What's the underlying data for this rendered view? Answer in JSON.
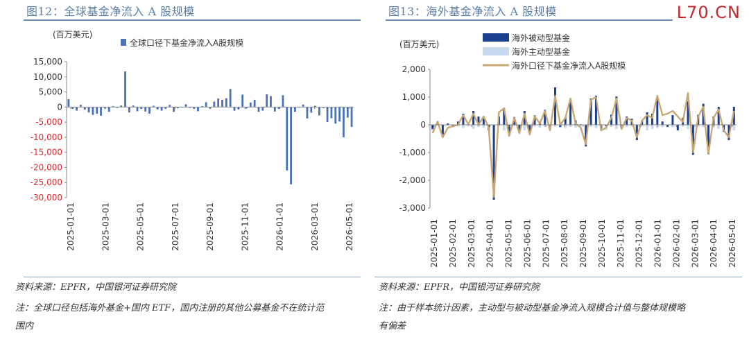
{
  "left": {
    "title": "图12：全球基金净流入 A 股规模",
    "unit": "(百万美元)",
    "source": "资料来源：EPFR，中国银河证券研究院",
    "note_line1": "注：全球口径包括海外基金+国内 ETF，国内注册的其他公募基金不在统计范",
    "note_line2": "围内",
    "chart_data": {
      "type": "bar",
      "ylim": [
        -30000,
        15000
      ],
      "yticks": [
        15000,
        10000,
        5000,
        0,
        -5000,
        -10000,
        -15000,
        -20000,
        -25000,
        -30000
      ],
      "ytick_labels": [
        "15,000",
        "10,000",
        "5,000",
        "0",
        "-5,000",
        "-10,000",
        "-15,000",
        "-20,000",
        "-25,000",
        "-30,000"
      ],
      "xtick_labels": [
        "2025-01-01",
        "2025-03-01",
        "2025-05-01",
        "2025-07-01",
        "2025-09-01",
        "2025-11-01",
        "2026-01-01",
        "2026-03-01",
        "2026-05-01"
      ],
      "series": [
        {
          "name": "全球口径下基金净流入A股规模",
          "color": "#4a72b8",
          "values": [
            2600,
            -600,
            -1200,
            700,
            -900,
            -1800,
            -2600,
            -2200,
            -2900,
            -500,
            -1600,
            300,
            -300,
            500,
            11800,
            -1800,
            500,
            -1400,
            -600,
            -1500,
            -2200,
            400,
            -800,
            -1200,
            -600,
            700,
            -1600,
            -400,
            -200,
            900,
            -300,
            -600,
            -1400,
            300,
            1600,
            -600,
            1800,
            2800,
            2400,
            2900,
            6000,
            -1200,
            -800,
            4100,
            -500,
            1500,
            2400,
            -1600,
            -1200,
            4200,
            3600,
            -1500,
            -600,
            3900,
            -21000,
            -25600,
            -1600,
            -200,
            800,
            -3800,
            -1900,
            400,
            -2800,
            -300,
            -5000,
            -3700,
            -5500,
            -4800,
            -10000,
            -3500,
            -6600
          ]
        }
      ]
    }
  },
  "right": {
    "title": "图13：海外基金净流入 A 股规模",
    "unit": "(百万美元)",
    "source": "资料来源：EPFR，中国银河证券研究院",
    "note_line1": "注：由于样本统计因素，主动型与被动型基金净流入规模合计值与整体规模略",
    "note_line2": "有偏差",
    "chart_data": {
      "type": "bar",
      "ylim": [
        -3000,
        2000
      ],
      "yticks": [
        2000,
        1000,
        0,
        -1000,
        -2000,
        -3000
      ],
      "ytick_labels": [
        "2,000",
        "1,000",
        "0",
        "-1,000",
        "-2,000",
        "-3,000"
      ],
      "xtick_labels": [
        "2025-01-01",
        "2025-02-01",
        "2025-03-01",
        "2025-04-01",
        "2025-05-01",
        "2025-06-01",
        "2025-07-01",
        "2025-08-01",
        "2025-09-01",
        "2025-10-01",
        "2025-11-01",
        "2025-12-01",
        "2026-01-01",
        "2026-02-01",
        "2026-03-01",
        "2026-04-01",
        "2026-05-01"
      ],
      "series": [
        {
          "name": "海外被动型基金",
          "color": "#1b3f8f",
          "values": [
            -150,
            120,
            -350,
            50,
            -80,
            120,
            400,
            30,
            500,
            300,
            220,
            -200,
            -2700,
            300,
            600,
            -350,
            280,
            -200,
            500,
            -250,
            340,
            120,
            540,
            -90,
            1350,
            -80,
            270,
            900,
            160,
            20,
            -780,
            950,
            1050,
            -130,
            -50,
            370,
            1020,
            -100,
            300,
            220,
            -550,
            160,
            450,
            400,
            1000,
            120,
            -80,
            350,
            -200,
            250,
            850,
            -1080,
            360,
            760,
            -1060,
            300,
            650,
            -250,
            -550,
            650
          ]
        },
        {
          "name": "海外主动型基金",
          "color": "#c7d8ef",
          "values": [
            -200,
            40,
            -80,
            -30,
            -40,
            -60,
            -120,
            -60,
            -150,
            -80,
            -100,
            -200,
            -150,
            -40,
            -200,
            -120,
            -60,
            -150,
            -200,
            -80,
            -60,
            -100,
            -80,
            -150,
            -60,
            -90,
            -120,
            -70,
            -100,
            -60,
            -50,
            -80,
            -120,
            -200,
            -180,
            -70,
            -150,
            -90,
            -80,
            -60,
            -100,
            -70,
            -200,
            -150,
            -120,
            -80,
            -60,
            -90,
            -100,
            -70,
            -150,
            -80,
            -60,
            -90,
            -70,
            -100,
            -150,
            -80,
            -60,
            -200
          ]
        },
        {
          "name": "海外口径下基金净流入A股规模",
          "color": "#c8a775",
          "values": [
            -300,
            120,
            -450,
            -100,
            -50,
            0,
            350,
            20,
            400,
            0,
            300,
            -100,
            -2600,
            450,
            600,
            -400,
            250,
            -300,
            400,
            -350,
            300,
            50,
            500,
            -200,
            1050,
            0,
            250,
            950,
            50,
            -100,
            -700,
            900,
            1000,
            -200,
            -100,
            250,
            950,
            -150,
            250,
            150,
            -450,
            150,
            350,
            250,
            1050,
            350,
            400,
            500,
            300,
            100,
            1150,
            -1000,
            300,
            650,
            -1050,
            250,
            550,
            -200,
            -450,
            500
          ]
        }
      ]
    }
  },
  "watermark": "L70.CN"
}
